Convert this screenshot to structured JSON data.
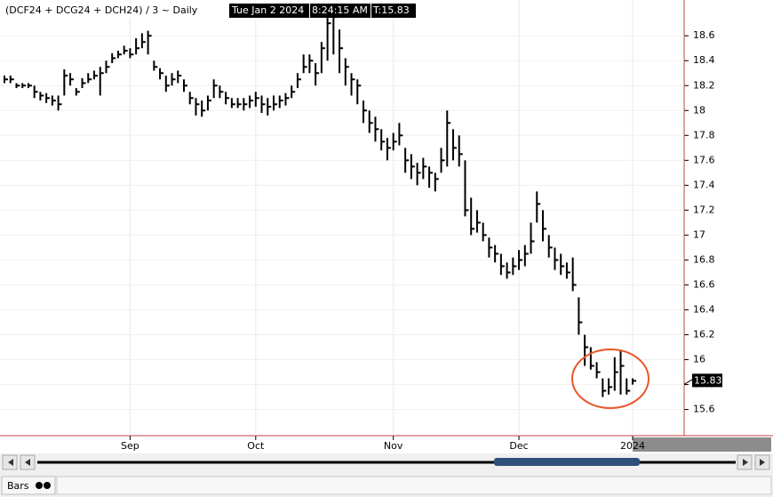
{
  "chart_data": {
    "type": "hlc",
    "title": "(DCF24 + DCG24 + DCH24) / 3 ~ Daily",
    "date_label": "Tue Jan 2 2024",
    "time_label": "8:24:15 AM",
    "last_label": "T:15.83",
    "last_price": 15.83,
    "categories": [
      null,
      null,
      null,
      null,
      null,
      null,
      null,
      null,
      null,
      null,
      null,
      null,
      null,
      null,
      null,
      null,
      null,
      null,
      null,
      null,
      null,
      "Sep",
      null,
      null,
      null,
      null,
      null,
      null,
      null,
      null,
      null,
      null,
      null,
      null,
      null,
      null,
      null,
      null,
      null,
      null,
      null,
      null,
      "Oct",
      null,
      null,
      null,
      null,
      null,
      null,
      null,
      null,
      null,
      null,
      null,
      null,
      null,
      null,
      null,
      null,
      null,
      null,
      null,
      null,
      null,
      null,
      "Nov",
      null,
      null,
      null,
      null,
      null,
      null,
      null,
      null,
      null,
      null,
      null,
      null,
      null,
      null,
      null,
      null,
      null,
      null,
      null,
      null,
      "Dec",
      null,
      null,
      null,
      null,
      null,
      null,
      null,
      null,
      null,
      null,
      null,
      null,
      null,
      null,
      null,
      null,
      null,
      null,
      "2024"
    ],
    "high": [
      18.28,
      18.28,
      18.22,
      18.22,
      18.22,
      18.2,
      18.15,
      18.14,
      18.12,
      18.12,
      18.33,
      18.3,
      18.18,
      18.26,
      18.3,
      18.32,
      18.35,
      18.4,
      18.46,
      18.48,
      18.52,
      18.5,
      18.58,
      18.62,
      18.64,
      18.4,
      18.34,
      18.28,
      18.3,
      18.32,
      18.25,
      18.15,
      18.1,
      18.08,
      18.12,
      18.25,
      18.2,
      18.15,
      18.1,
      18.1,
      18.1,
      18.12,
      18.15,
      18.12,
      18.1,
      18.12,
      18.12,
      18.14,
      18.2,
      18.3,
      18.45,
      18.45,
      18.38,
      18.55,
      18.82,
      18.85,
      18.65,
      18.42,
      18.3,
      18.25,
      18.08,
      18.0,
      17.95,
      17.85,
      17.78,
      17.82,
      17.9,
      17.7,
      17.65,
      17.58,
      17.62,
      17.55,
      17.5,
      17.7,
      18.0,
      17.85,
      17.8,
      17.6,
      17.3,
      17.2,
      17.1,
      16.98,
      16.92,
      16.85,
      16.78,
      16.82,
      16.88,
      16.92,
      17.1,
      17.35,
      17.2,
      17.0,
      16.9,
      16.85,
      16.78,
      16.82,
      16.5,
      16.2,
      16.1,
      15.98,
      15.85,
      15.85,
      16.02,
      16.08,
      15.85,
      15.85
    ],
    "low": [
      18.22,
      18.22,
      18.18,
      18.18,
      18.18,
      18.1,
      18.08,
      18.06,
      18.04,
      18.0,
      18.12,
      18.2,
      18.12,
      18.18,
      18.22,
      18.25,
      18.12,
      18.3,
      18.38,
      18.42,
      18.45,
      18.42,
      18.45,
      18.5,
      18.45,
      18.32,
      18.25,
      18.15,
      18.2,
      18.22,
      18.15,
      18.05,
      17.96,
      17.95,
      18.0,
      18.1,
      18.1,
      18.05,
      18.02,
      18.02,
      18.0,
      18.02,
      18.03,
      17.98,
      17.96,
      18.0,
      18.02,
      18.04,
      18.1,
      18.18,
      18.3,
      18.3,
      18.2,
      18.3,
      18.4,
      18.45,
      18.3,
      18.2,
      18.12,
      18.05,
      17.9,
      17.82,
      17.75,
      17.68,
      17.6,
      17.68,
      17.72,
      17.5,
      17.45,
      17.4,
      17.45,
      17.38,
      17.35,
      17.5,
      17.55,
      17.6,
      17.55,
      17.15,
      17.0,
      17.02,
      16.95,
      16.82,
      16.78,
      16.68,
      16.65,
      16.68,
      16.72,
      16.75,
      16.85,
      17.1,
      16.95,
      16.82,
      16.72,
      16.68,
      16.65,
      16.55,
      16.2,
      15.95,
      15.92,
      15.85,
      15.7,
      15.72,
      15.75,
      15.72,
      15.72,
      15.8
    ],
    "close": [
      18.25,
      18.25,
      18.2,
      18.2,
      18.2,
      18.15,
      18.12,
      18.1,
      18.08,
      18.05,
      18.28,
      18.25,
      18.15,
      18.22,
      18.25,
      18.28,
      18.3,
      18.35,
      18.42,
      18.45,
      18.48,
      18.45,
      18.5,
      18.55,
      18.6,
      18.35,
      18.3,
      18.2,
      18.25,
      18.28,
      18.2,
      18.1,
      18.05,
      18.0,
      18.08,
      18.2,
      18.15,
      18.1,
      18.05,
      18.05,
      18.05,
      18.08,
      18.1,
      18.05,
      18.03,
      18.05,
      18.08,
      18.1,
      18.15,
      18.25,
      18.35,
      18.4,
      18.3,
      18.5,
      18.7,
      18.75,
      18.5,
      18.35,
      18.25,
      18.2,
      18.0,
      17.9,
      17.85,
      17.75,
      17.7,
      17.75,
      17.8,
      17.6,
      17.55,
      17.5,
      17.55,
      17.5,
      17.45,
      17.6,
      17.9,
      17.7,
      17.65,
      17.2,
      17.05,
      17.1,
      17.0,
      16.9,
      16.85,
      16.75,
      16.7,
      16.75,
      16.8,
      16.85,
      16.95,
      17.25,
      17.05,
      16.9,
      16.8,
      16.75,
      16.7,
      16.6,
      16.3,
      16.1,
      15.95,
      15.9,
      15.75,
      15.78,
      15.9,
      15.95,
      15.75,
      15.83
    ],
    "color": "#000000",
    "ylim": [
      15.39,
      18.887
    ],
    "yticks": [
      15.6,
      15.8,
      16,
      16.2,
      16.4,
      16.6,
      16.8,
      17,
      17.2,
      17.4,
      17.6,
      17.8,
      18,
      18.2,
      18.4,
      18.6
    ],
    "grid": true,
    "footer_tab": "Bars"
  }
}
